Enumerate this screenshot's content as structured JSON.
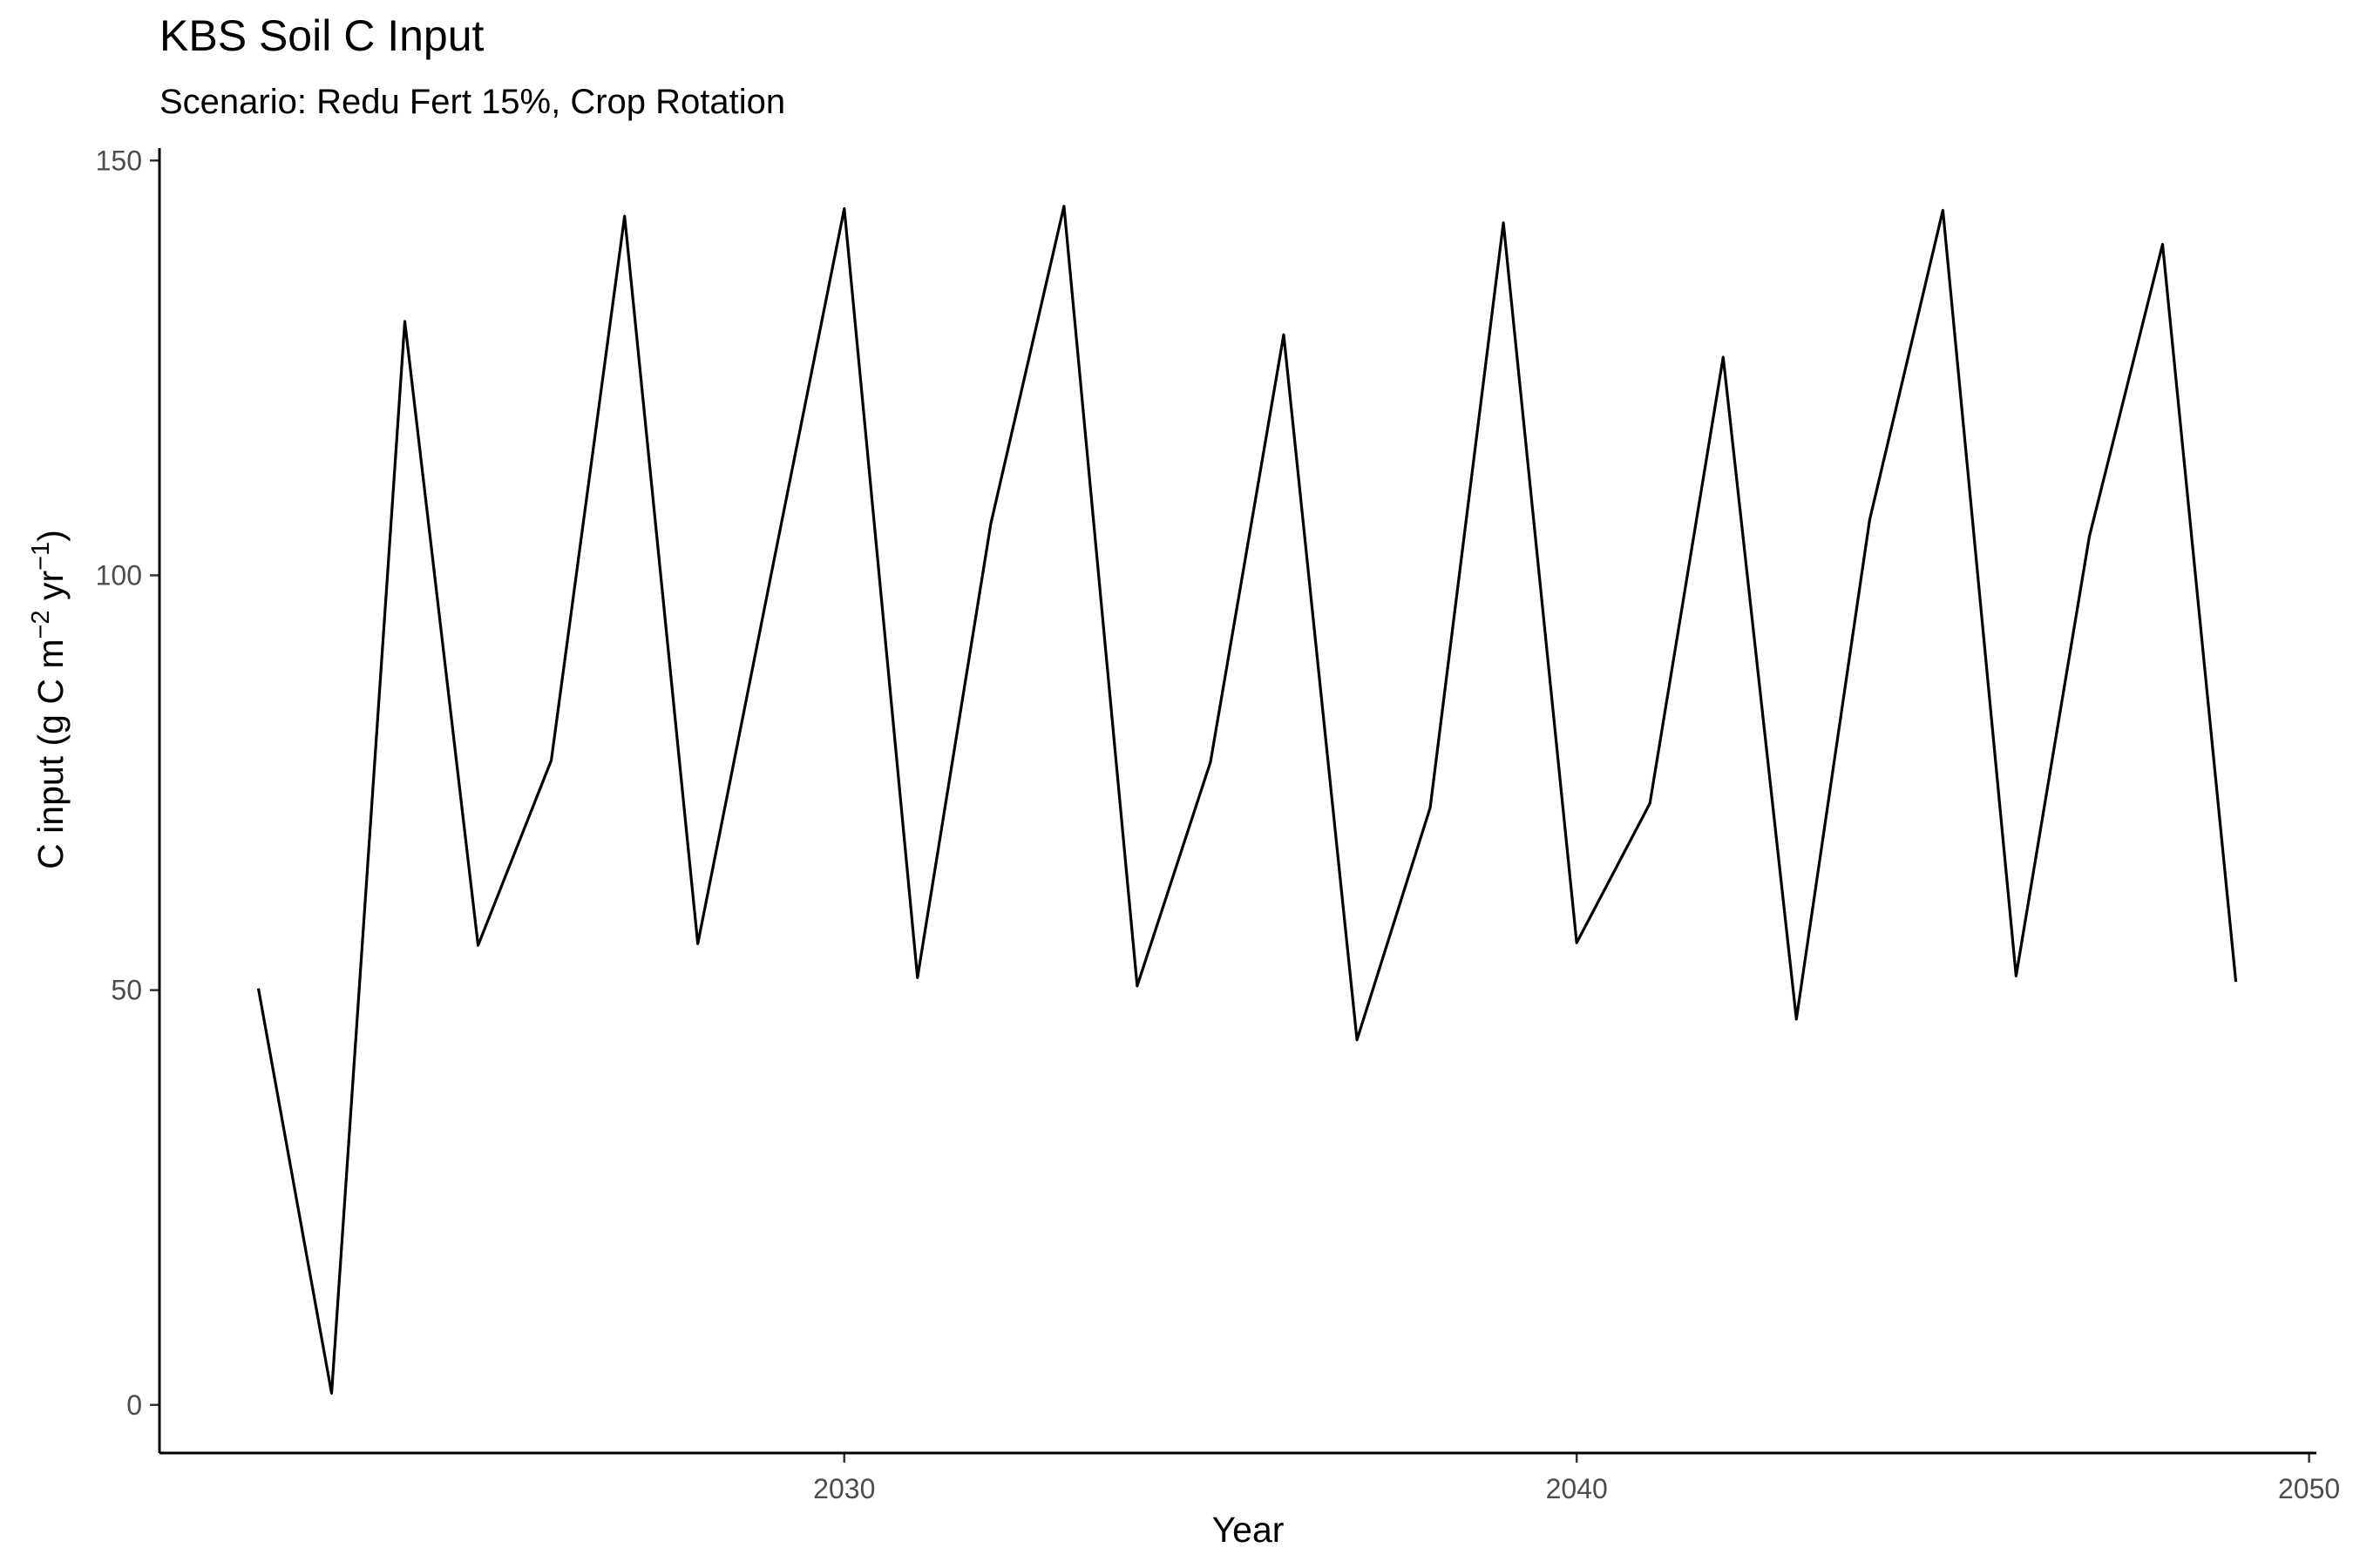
{
  "chart_data": {
    "type": "line",
    "title": "KBS Soil C Input",
    "subtitle": "Scenario: Redu Fert 15%, Crop Rotation",
    "xlabel": "Year",
    "ylabel": {
      "base": "C input (g C m",
      "sup1": "−2",
      "mid": " yr",
      "sup2": "−1",
      "end": ")"
    },
    "xlim": [
      2020.65,
      2050.1
    ],
    "ylim": [
      -5.8,
      151.5
    ],
    "x_ticks": [
      2030,
      2040,
      2050
    ],
    "y_ticks": [
      0,
      50,
      100,
      150
    ],
    "x_tick_labels": [
      "2030",
      "2040",
      "2050"
    ],
    "y_tick_labels": [
      "0",
      "50",
      "100",
      "150"
    ],
    "grid": false,
    "legend": "none",
    "series": [
      {
        "color": "#000000",
        "x": [
          2022,
          2023,
          2024,
          2025,
          2026,
          2027,
          2028,
          2029,
          2030,
          2031,
          2032,
          2033,
          2034,
          2035,
          2036,
          2037,
          2038,
          2039,
          2040,
          2041,
          2042,
          2043,
          2044,
          2045,
          2046,
          2047,
          2048,
          2049
        ],
        "y": [
          50.2,
          1.4,
          130.6,
          55.4,
          77.7,
          143.3,
          55.6,
          100.0,
          144.2,
          51.5,
          106.2,
          144.5,
          50.5,
          77.5,
          129.0,
          44.0,
          72.0,
          142.5,
          55.7,
          72.5,
          126.3,
          46.5,
          106.7,
          144.0,
          51.7,
          104.7,
          139.9,
          51.0
        ]
      }
    ]
  }
}
